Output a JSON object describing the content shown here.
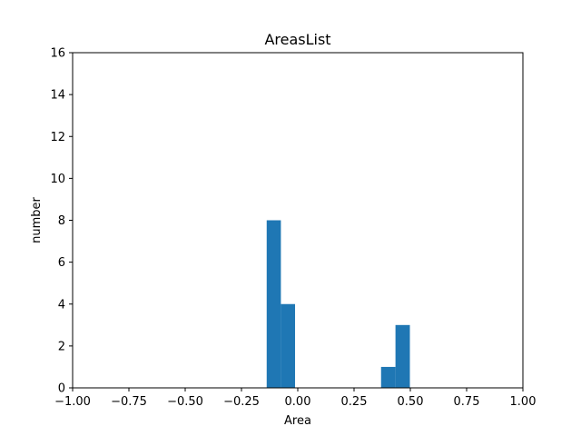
{
  "chart_data": {
    "type": "bar",
    "title": "AreasList",
    "xlabel": "Area",
    "ylabel": "number",
    "xlim": [
      -1.0,
      1.0
    ],
    "ylim": [
      0,
      16
    ],
    "xticks": [
      "−1.00",
      "−0.75",
      "−0.50",
      "−0.25",
      "0.00",
      "0.25",
      "0.50",
      "0.75",
      "1.00"
    ],
    "yticks": [
      "0",
      "2",
      "4",
      "6",
      "8",
      "10",
      "12",
      "14",
      "16"
    ],
    "bar_color": "#1f77b4",
    "grid": false,
    "bins": [
      {
        "x_start": -0.138,
        "x_end": -0.075,
        "value": 8
      },
      {
        "x_start": -0.075,
        "x_end": -0.012,
        "value": 4
      },
      {
        "x_start": 0.37,
        "x_end": 0.434,
        "value": 1
      },
      {
        "x_start": 0.434,
        "x_end": 0.498,
        "value": 3
      }
    ]
  }
}
